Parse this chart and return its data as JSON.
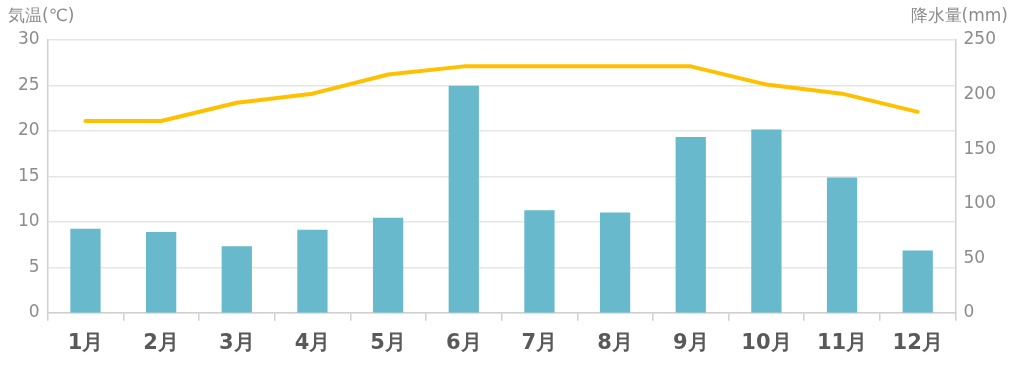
{
  "chart_data": {
    "type": "bar",
    "ylabel": "気温(℃)",
    "y2label": "降水量(mm)",
    "categories": [
      "1月",
      "2月",
      "3月",
      "4月",
      "5月",
      "6月",
      "7月",
      "8月",
      "9月",
      "10月",
      "11月",
      "12月"
    ],
    "series": [
      {
        "axis": "y2",
        "color": "#67b9cb",
        "values": [
          77,
          74,
          61,
          76,
          87,
          208,
          94,
          92,
          161,
          168,
          124,
          57
        ]
      },
      {
        "type": "line",
        "axis": "y",
        "color": "#ffc000",
        "values": [
          21.1,
          21.1,
          23.1,
          24.1,
          26.2,
          27.1,
          27.1,
          27.1,
          27.1,
          25.1,
          24.1,
          22.1
        ]
      }
    ],
    "ylim": [
      0,
      30
    ],
    "yticks": [
      0,
      5,
      10,
      15,
      20,
      25,
      30
    ],
    "y2lim": [
      0,
      250
    ],
    "y2ticks": [
      0,
      50,
      100,
      150,
      200,
      250
    ],
    "grid": "y",
    "legend": false,
    "marker": "none",
    "line_style": "solid"
  }
}
